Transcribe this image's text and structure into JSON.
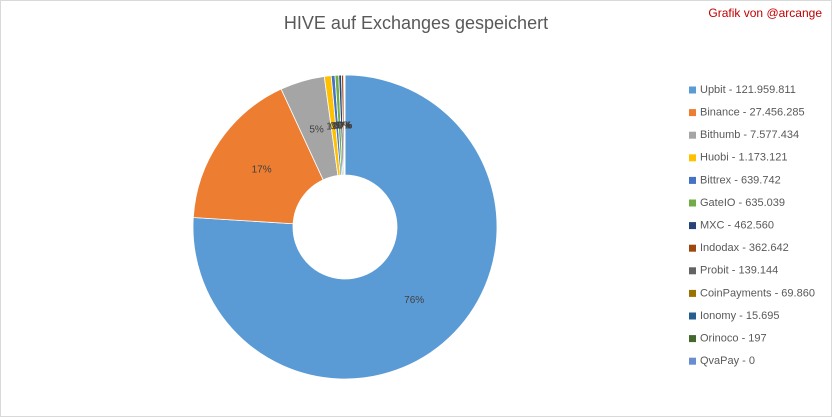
{
  "chart_data": {
    "type": "donut",
    "title": "HIVE auf Exchanges gespeichert",
    "credit": "Grafik von @arcange",
    "categories": [
      "Upbit - 121.959.811",
      "Binance - 27.456.285",
      "Bithumb - 7.577.434",
      "Huobi - 1.173.121",
      "Bittrex - 639.742",
      "GateIO - 635.039",
      "MXC - 462.560",
      "Indodax - 362.642",
      "Probit - 139.144",
      "CoinPayments - 69.860",
      "Ionomy - 15.695",
      "Orinoco - 197",
      "QvaPay - 0"
    ],
    "values": [
      121959811,
      27456285,
      7577434,
      1173121,
      639742,
      635039,
      462560,
      362642,
      139144,
      69860,
      15695,
      197,
      0
    ],
    "value_labels": [
      "76%",
      "17%",
      "5%",
      "1%",
      "0%",
      "0%",
      "0%",
      "0%",
      "0%",
      "0%",
      "0%",
      "0%",
      "0%"
    ],
    "colors": [
      "#5b9bd5",
      "#ed7d31",
      "#a5a5a5",
      "#ffc000",
      "#4472c4",
      "#70ad47",
      "#264478",
      "#9e480e",
      "#636363",
      "#997300",
      "#255e91",
      "#43682b",
      "#698ed0"
    ],
    "legend": "right"
  }
}
